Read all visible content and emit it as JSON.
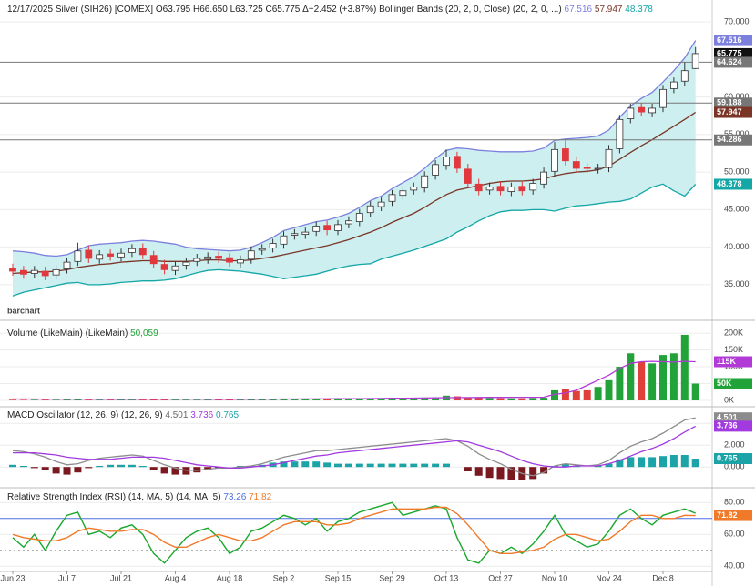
{
  "chart_data": [
    {
      "type": "candlestick",
      "title": "12/17/2025 Silver (SIH26) [COMEX]",
      "ohlc_summary": "O63.795 H66.650 L63.725 C65.775",
      "change": "Δ+2.452 (+3.87%)",
      "watermark": "barchart",
      "categories": [
        "Jun 23",
        null,
        null,
        null,
        null,
        "Jul 7",
        null,
        null,
        null,
        null,
        "Jul 21",
        null,
        null,
        null,
        null,
        "Aug 4",
        null,
        null,
        null,
        null,
        "Aug 18",
        null,
        null,
        null,
        null,
        "Sep 2",
        null,
        null,
        null,
        null,
        "Sep 15",
        null,
        null,
        null,
        null,
        "Sep 29",
        null,
        null,
        null,
        null,
        "Oct 13",
        null,
        null,
        null,
        null,
        "Oct 27",
        null,
        null,
        null,
        null,
        "Nov 10",
        null,
        null,
        null,
        null,
        "Nov 24",
        null,
        null,
        null,
        null,
        "Dec 8",
        null,
        null,
        null
      ],
      "open": [
        37.2,
        36.9,
        36.5,
        36.8,
        36.3,
        37.1,
        38.1,
        39.6,
        38.4,
        39.1,
        38.7,
        39.3,
        39.9,
        38.9,
        37.7,
        36.9,
        37.6,
        38.1,
        38.4,
        38.8,
        38.6,
        37.9,
        38.4,
        39.6,
        39.9,
        40.4,
        41.6,
        41.7,
        42.1,
        42.9,
        42.2,
        43.1,
        43.4,
        44.6,
        45.4,
        46.1,
        46.9,
        47.6,
        47.9,
        49.6,
        50.9,
        52.1,
        50.4,
        48.4,
        47.6,
        48.1,
        47.4,
        48.1,
        47.6,
        48.4,
        50.1,
        53.1,
        51.4,
        50.6,
        50.4,
        50.6,
        53.1,
        57.1,
        58.6,
        57.9,
        58.6,
        61.1,
        62.1,
        63.795
      ],
      "high": [
        37.8,
        37.5,
        37.5,
        37.4,
        37.6,
        38.6,
        40.6,
        40.2,
        39.6,
        39.7,
        39.8,
        40.4,
        40.5,
        39.5,
        38.3,
        38.1,
        38.6,
        39.1,
        39.3,
        39.4,
        39.2,
        38.9,
        40.1,
        40.4,
        41.1,
        42.1,
        42.4,
        42.6,
        43.4,
        43.5,
        43.6,
        44.1,
        45.1,
        46.1,
        46.6,
        47.6,
        48.1,
        48.6,
        50.1,
        51.6,
        53.0,
        52.7,
        51.1,
        49.1,
        48.6,
        48.7,
        48.6,
        48.7,
        49.1,
        50.6,
        54.0,
        54.2,
        52.1,
        51.2,
        51.1,
        53.6,
        57.6,
        59.1,
        59.2,
        59.1,
        61.6,
        62.6,
        64.6,
        66.65
      ],
      "low": [
        36.2,
        35.8,
        35.9,
        35.6,
        35.7,
        36.5,
        37.5,
        37.9,
        37.8,
        38.2,
        38.1,
        38.7,
        38.4,
        37.2,
        36.4,
        36.3,
        37.0,
        37.5,
        37.8,
        37.9,
        37.4,
        37.3,
        37.8,
        39.0,
        39.3,
        39.8,
        41.0,
        41.1,
        41.5,
        41.6,
        41.6,
        42.5,
        42.8,
        44.0,
        44.8,
        45.5,
        46.3,
        47.0,
        47.3,
        49.0,
        50.3,
        49.9,
        47.9,
        46.9,
        47.0,
        46.9,
        46.8,
        46.9,
        47.0,
        47.8,
        49.5,
        50.9,
        49.9,
        49.9,
        49.8,
        50.0,
        52.5,
        56.5,
        57.4,
        57.3,
        58.0,
        60.5,
        61.5,
        63.725
      ],
      "close": [
        36.8,
        36.4,
        36.9,
        36.2,
        37.0,
        38.0,
        39.5,
        38.5,
        39.0,
        38.8,
        39.2,
        39.8,
        39.0,
        37.8,
        37.0,
        37.5,
        38.0,
        38.5,
        38.7,
        38.5,
        38.0,
        38.3,
        39.5,
        39.8,
        40.5,
        41.5,
        41.8,
        42.0,
        42.8,
        42.3,
        43.0,
        43.5,
        44.5,
        45.5,
        46.0,
        47.0,
        47.5,
        48.0,
        49.5,
        51.0,
        52.0,
        50.5,
        48.5,
        47.5,
        48.0,
        47.5,
        48.0,
        47.5,
        48.5,
        50.0,
        53.0,
        51.5,
        50.5,
        50.5,
        50.5,
        53.0,
        57.0,
        58.5,
        58.0,
        58.5,
        61.0,
        62.0,
        63.5,
        65.775
      ],
      "up_color": "#ffffff",
      "down_color": "#e0383c",
      "close_box_color": "#111111",
      "bands": {
        "name": "Bollinger Bands (20, 2, 0, Close) (20, 2, 0, ...)",
        "fill": "#cdeff0",
        "series": [
          {
            "color": "#7c80dc",
            "values": [
              39.5,
              39.4,
              39.2,
              38.9,
              38.8,
              39.0,
              39.6,
              40.2,
              40.4,
              40.5,
              40.6,
              40.8,
              40.9,
              40.8,
              40.6,
              40.4,
              40.0,
              39.8,
              39.7,
              39.6,
              39.5,
              39.6,
              40.0,
              40.6,
              41.3,
              42.2,
              42.6,
              43.0,
              43.4,
              43.6,
              44.0,
              44.5,
              45.3,
              46.2,
              46.8,
              47.8,
              48.6,
              49.4,
              50.5,
              51.8,
              52.9,
              53.2,
              53.1,
              52.9,
              52.8,
              52.7,
              52.7,
              52.7,
              52.8,
              53.2,
              54.2,
              54.4,
              54.5,
              54.6,
              54.8,
              55.6,
              57.3,
              58.8,
              59.8,
              60.6,
              62.0,
              63.5,
              65.2,
              67.516
            ]
          },
          {
            "color": "#7a3527",
            "values": [
              36.5,
              36.6,
              36.7,
              36.7,
              36.8,
              37.0,
              37.3,
              37.5,
              37.7,
              37.8,
              38.0,
              38.1,
              38.2,
              38.2,
              38.1,
              38.1,
              38.1,
              38.2,
              38.3,
              38.3,
              38.2,
              38.2,
              38.3,
              38.5,
              38.7,
              39.0,
              39.3,
              39.6,
              39.9,
              40.2,
              40.6,
              41.0,
              41.5,
              42.0,
              42.6,
              43.3,
              43.9,
              44.5,
              45.3,
              46.2,
              47.0,
              47.6,
              47.9,
              48.2,
              48.5,
              48.7,
              48.8,
              48.8,
              48.9,
              49.1,
              49.5,
              49.8,
              50.0,
              50.1,
              50.3,
              50.8,
              51.7,
              52.6,
              53.5,
              54.3,
              55.2,
              56.1,
              57.0,
              57.947
            ]
          },
          {
            "color": "#15a6a6",
            "values": [
              33.5,
              34.0,
              34.3,
              34.6,
              34.9,
              35.2,
              35.3,
              35.0,
              35.0,
              35.1,
              35.3,
              35.4,
              35.5,
              35.5,
              35.6,
              35.8,
              36.2,
              36.6,
              36.9,
              37.0,
              36.9,
              36.8,
              36.6,
              36.4,
              36.1,
              35.8,
              36.0,
              36.2,
              36.4,
              36.8,
              37.2,
              37.5,
              37.7,
              37.8,
              38.4,
              38.8,
              39.2,
              39.6,
              40.1,
              40.6,
              41.1,
              42.0,
              42.7,
              43.5,
              44.2,
              44.7,
              44.9,
              44.9,
              45.0,
              45.0,
              44.8,
              45.2,
              45.5,
              45.6,
              45.8,
              46.0,
              46.1,
              46.4,
              47.2,
              48.0,
              48.4,
              47.5,
              46.8,
              48.378
            ]
          }
        ]
      },
      "reference_lines": [
        {
          "value": 64.624,
          "color": "#777777"
        },
        {
          "value": 59.188,
          "color": "#777777"
        },
        {
          "value": 54.286,
          "color": "#777777"
        }
      ],
      "ylim": [
        30.5,
        71.1
      ],
      "yticks": [
        {
          "value": 35,
          "label": "35.000"
        },
        {
          "value": 40,
          "label": "40.000"
        },
        {
          "value": 45,
          "label": "45.000"
        },
        {
          "value": 50,
          "label": "50.000"
        },
        {
          "value": 55,
          "label": "55.000"
        },
        {
          "value": 60,
          "label": "60.000"
        },
        {
          "value": 70,
          "label": "70.000"
        }
      ],
      "grid": true
    },
    {
      "type": "bar",
      "title": "Volume (LikeMain) (LikeMain)",
      "legend_value": "50,059",
      "values": [
        2000,
        1500,
        1800,
        2200,
        1600,
        2500,
        3000,
        2200,
        1800,
        2000,
        2500,
        2100,
        2400,
        2800,
        2600,
        2300,
        2000,
        1900,
        2200,
        2400,
        2600,
        2300,
        2800,
        3000,
        3200,
        4000,
        3500,
        3800,
        4200,
        4500,
        5000,
        4800,
        5500,
        6000,
        5800,
        6500,
        7000,
        7500,
        8500,
        9000,
        14000,
        12000,
        9000,
        8000,
        7000,
        6500,
        6000,
        6200,
        7000,
        8000,
        30000,
        35000,
        28000,
        30000,
        40000,
        60000,
        100000,
        140000,
        115000,
        110000,
        135000,
        140000,
        195000,
        50059
      ],
      "last_value_label": "50K",
      "up_color": "#22a33a",
      "down_color": "#e0403a",
      "ma": {
        "color": "#b23ad6",
        "last_value_label": "115K",
        "values": [
          4000,
          4000,
          4000,
          3900,
          3800,
          3800,
          3800,
          3700,
          3600,
          3600,
          3600,
          3600,
          3700,
          3800,
          3800,
          3800,
          3800,
          3700,
          3600,
          3500,
          3500,
          3500,
          3600,
          3700,
          3800,
          4000,
          4100,
          4200,
          4400,
          4600,
          4800,
          5000,
          5200,
          5500,
          5800,
          6100,
          6400,
          6700,
          7100,
          7500,
          8000,
          8300,
          8500,
          8700,
          8800,
          8900,
          9000,
          9100,
          9200,
          9400,
          18000,
          22000,
          30000,
          45000,
          60000,
          75000,
          95000,
          110000,
          115000,
          116000,
          115000,
          114000,
          116000,
          115000
        ]
      },
      "ylim": [
        0,
        230000
      ],
      "yticks": [
        {
          "value": 0,
          "label": "0K"
        },
        {
          "value": 50000,
          "label": "50K"
        },
        {
          "value": 100000,
          "label": "100K"
        },
        {
          "value": 150000,
          "label": "150K"
        },
        {
          "value": 200000,
          "label": "200K"
        }
      ],
      "grid": true
    },
    {
      "type": "macd",
      "title": "MACD Oscillator (12, 26, 9) (12, 26, 9)",
      "series": [
        {
          "color": "#8c8c8c",
          "values": [
            1.5,
            1.4,
            1.2,
            0.9,
            0.5,
            0.2,
            0.3,
            0.6,
            0.8,
            0.9,
            1.0,
            1.1,
            1.0,
            0.6,
            0.2,
            -0.1,
            -0.3,
            -0.3,
            -0.2,
            -0.1,
            -0.1,
            0.0,
            0.1,
            0.3,
            0.6,
            0.9,
            1.1,
            1.3,
            1.5,
            1.5,
            1.6,
            1.7,
            1.8,
            1.9,
            2.0,
            2.1,
            2.2,
            2.3,
            2.4,
            2.5,
            2.6,
            2.4,
            1.9,
            1.2,
            0.7,
            0.3,
            -0.2,
            -0.6,
            -0.8,
            -0.5,
            0.1,
            0.3,
            0.2,
            0.1,
            0.2,
            0.6,
            1.3,
            1.9,
            2.3,
            2.6,
            3.1,
            3.7,
            4.3,
            4.501
          ]
        },
        {
          "color": "#a23ae0",
          "values": [
            1.3,
            1.3,
            1.3,
            1.2,
            1.1,
            0.9,
            0.8,
            0.7,
            0.7,
            0.7,
            0.8,
            0.9,
            0.9,
            0.9,
            0.8,
            0.6,
            0.4,
            0.2,
            0.1,
            0.0,
            -0.1,
            -0.1,
            0.0,
            0.1,
            0.2,
            0.4,
            0.6,
            0.8,
            1.0,
            1.1,
            1.3,
            1.4,
            1.5,
            1.6,
            1.7,
            1.8,
            1.9,
            2.0,
            2.1,
            2.2,
            2.3,
            2.4,
            2.3,
            2.0,
            1.7,
            1.4,
            1.0,
            0.6,
            0.3,
            0.1,
            0.0,
            0.0,
            0.1,
            0.1,
            0.1,
            0.3,
            0.6,
            1.0,
            1.4,
            1.7,
            2.1,
            2.6,
            3.2,
            3.736
          ]
        }
      ],
      "histogram": {
        "positive_color": "#1ba3a8",
        "negative_color": "#7a1a20",
        "values": [
          0.2,
          0.1,
          -0.1,
          -0.3,
          -0.6,
          -0.7,
          -0.5,
          -0.1,
          0.1,
          0.2,
          0.2,
          0.2,
          0.1,
          -0.3,
          -0.6,
          -0.7,
          -0.7,
          -0.5,
          -0.3,
          -0.1,
          0.0,
          0.1,
          0.1,
          0.2,
          0.4,
          0.5,
          0.5,
          0.5,
          0.5,
          0.4,
          0.3,
          0.3,
          0.3,
          0.3,
          0.3,
          0.3,
          0.3,
          0.3,
          0.3,
          0.3,
          0.3,
          0.0,
          -0.4,
          -0.8,
          -1.0,
          -1.1,
          -1.2,
          -1.2,
          -1.1,
          -0.6,
          0.1,
          0.3,
          0.1,
          0.0,
          0.1,
          0.3,
          0.7,
          0.9,
          0.9,
          0.9,
          1.0,
          1.1,
          1.1,
          0.765
        ]
      },
      "ylim": [
        -1.4,
        5.1
      ],
      "yticks": [
        {
          "value": 0,
          "label": "0.000"
        },
        {
          "value": 2,
          "label": "2.000"
        },
        {
          "value": 4,
          "label": "4.000"
        }
      ],
      "grid": true
    },
    {
      "type": "line",
      "title": "Relative Strength Index (RSI) (14, MA, 5) (14, MA, 5)",
      "series": [
        {
          "color": "#18a82c",
          "values": [
            58,
            52,
            60,
            50,
            62,
            72,
            74,
            60,
            62,
            58,
            64,
            66,
            60,
            48,
            42,
            50,
            58,
            62,
            64,
            58,
            48,
            52,
            62,
            64,
            68,
            72,
            70,
            66,
            70,
            62,
            68,
            70,
            74,
            76,
            78,
            80,
            72,
            74,
            76,
            78,
            76,
            58,
            44,
            42,
            50,
            48,
            52,
            48,
            54,
            62,
            72,
            60,
            56,
            52,
            54,
            62,
            72,
            76,
            70,
            66,
            72,
            74,
            76,
            73.26
          ]
        },
        {
          "color": "#f07a2a",
          "values": [
            60,
            58,
            57,
            56,
            56,
            58,
            62,
            64,
            63,
            62,
            62,
            63,
            63,
            60,
            55,
            52,
            52,
            55,
            58,
            60,
            58,
            56,
            56,
            58,
            62,
            66,
            68,
            68,
            68,
            66,
            66,
            67,
            70,
            72,
            74,
            76,
            76,
            76,
            76,
            77,
            77,
            73,
            66,
            58,
            50,
            48,
            48,
            49,
            50,
            52,
            57,
            60,
            60,
            58,
            56,
            57,
            62,
            68,
            72,
            72,
            70,
            70,
            72,
            71.82
          ]
        }
      ],
      "reference_lines": [
        {
          "value": 70,
          "color": "#4a6ee0"
        },
        {
          "value": 50,
          "color": "#999999"
        }
      ],
      "ylim": [
        35,
        87
      ],
      "yticks": [
        {
          "value": 40,
          "label": "40.00"
        },
        {
          "value": 60,
          "label": "60.00"
        },
        {
          "value": 80,
          "label": "80.00"
        }
      ],
      "grid": true
    }
  ]
}
